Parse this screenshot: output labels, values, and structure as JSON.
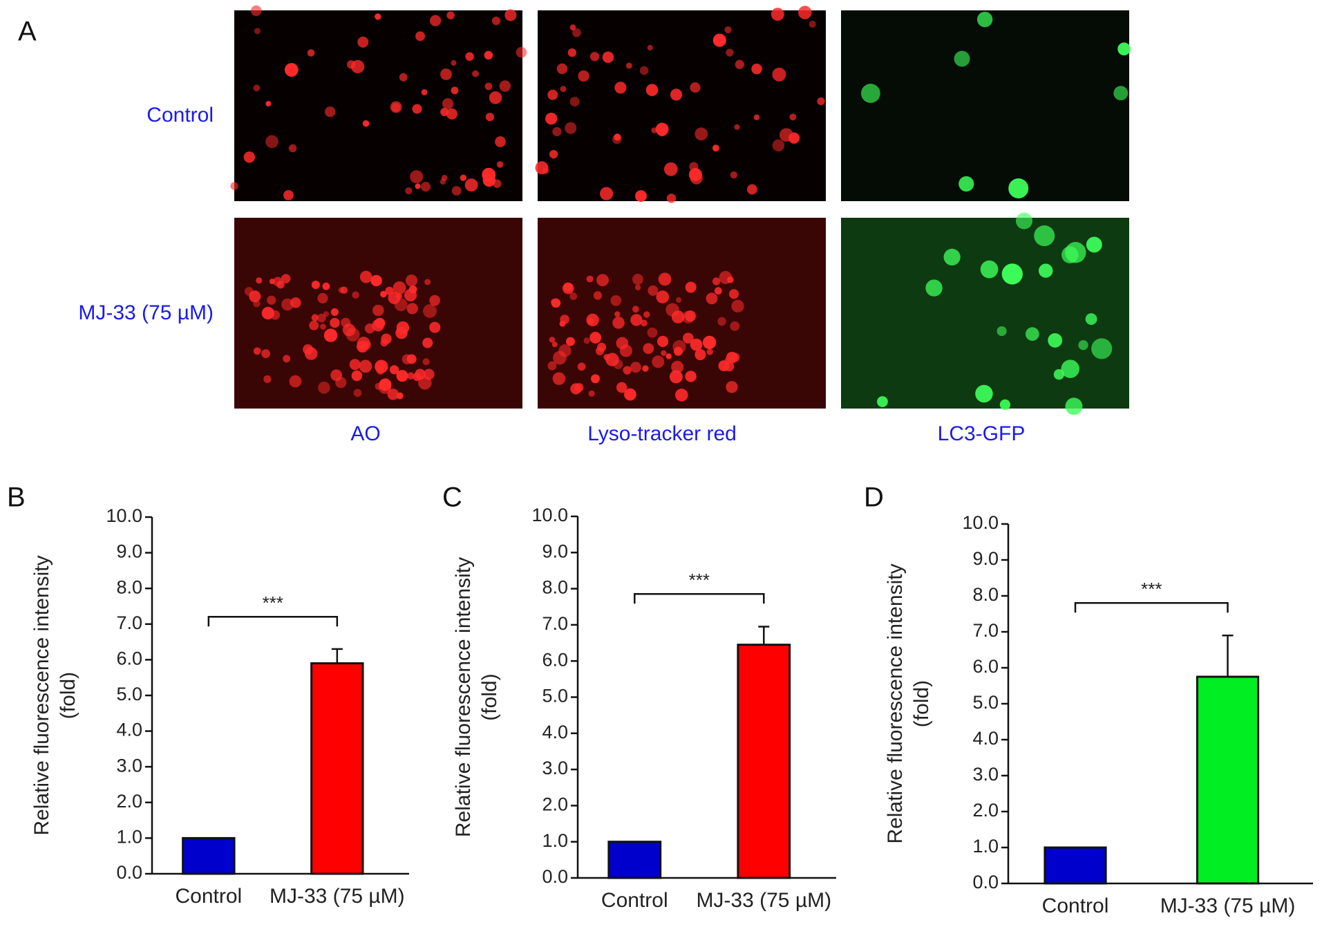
{
  "panel_a": {
    "label": "A",
    "rows": [
      "Control",
      "MJ-33 (75 µM)"
    ],
    "columns": [
      "AO",
      "Lyso-tracker red",
      "LC3-GFP"
    ]
  },
  "chart_data": [
    {
      "type": "bar",
      "panel": "B",
      "ylabel": [
        "Relative fluorescence intensity",
        "(fold)"
      ],
      "categories": [
        "Control",
        "MJ-33 (75 µM)"
      ],
      "values": [
        1.0,
        5.9
      ],
      "errors": [
        null,
        0.4
      ],
      "colors": [
        "#0000cc",
        "#ff0000"
      ],
      "annotation": "***",
      "ylim": [
        0,
        10
      ],
      "yticks": [
        {
          "value": 0,
          "label": "0.0"
        },
        {
          "value": 1,
          "label": "1.0"
        },
        {
          "value": 2,
          "label": "2.0"
        },
        {
          "value": 3,
          "label": "3.0"
        },
        {
          "value": 4,
          "label": "4.0"
        },
        {
          "value": 5,
          "label": "5.0"
        },
        {
          "value": 6,
          "label": "6.0"
        },
        {
          "value": 7,
          "label": "7.0"
        },
        {
          "value": 8,
          "label": "8.0"
        },
        {
          "value": 9,
          "label": "9.0"
        },
        {
          "value": 10,
          "label": "10.0"
        }
      ]
    },
    {
      "type": "bar",
      "panel": "C",
      "ylabel": [
        "Relative fluorescence intensity",
        "(fold)"
      ],
      "categories": [
        "Control",
        "MJ-33 (75 µM)"
      ],
      "values": [
        1.0,
        6.45
      ],
      "errors": [
        null,
        0.5
      ],
      "colors": [
        "#0000cc",
        "#ff0000"
      ],
      "annotation": "***",
      "ylim": [
        0,
        10
      ],
      "yticks": [
        {
          "value": 0,
          "label": "0.0"
        },
        {
          "value": 1,
          "label": "1.0"
        },
        {
          "value": 2,
          "label": "2.0"
        },
        {
          "value": 3,
          "label": "3.0"
        },
        {
          "value": 4,
          "label": "4.0"
        },
        {
          "value": 5,
          "label": "5.0"
        },
        {
          "value": 6,
          "label": "6.0"
        },
        {
          "value": 7,
          "label": "7.0"
        },
        {
          "value": 8,
          "label": "8.0"
        },
        {
          "value": 9,
          "label": "9.0"
        },
        {
          "value": 10,
          "label": "10.0"
        }
      ]
    },
    {
      "type": "bar",
      "panel": "D",
      "ylabel": [
        "Relative fluorescence intensity",
        "(fold)"
      ],
      "categories": [
        "Control",
        "MJ-33 (75 µM)"
      ],
      "values": [
        1.0,
        5.75
      ],
      "errors": [
        null,
        1.15
      ],
      "colors": [
        "#0000cc",
        "#00ee22"
      ],
      "annotation": "***",
      "ylim": [
        0,
        10
      ],
      "yticks": [
        {
          "value": 0,
          "label": "0.0"
        },
        {
          "value": 1,
          "label": "1.0"
        },
        {
          "value": 2,
          "label": "2.0"
        },
        {
          "value": 3,
          "label": "3.0"
        },
        {
          "value": 4,
          "label": "4.0"
        },
        {
          "value": 5,
          "label": "5.0"
        },
        {
          "value": 6,
          "label": "6.0"
        },
        {
          "value": 7,
          "label": "7.0"
        },
        {
          "value": 8,
          "label": "8.0"
        },
        {
          "value": 9,
          "label": "9.0"
        },
        {
          "value": 10,
          "label": "10.0"
        }
      ]
    }
  ]
}
